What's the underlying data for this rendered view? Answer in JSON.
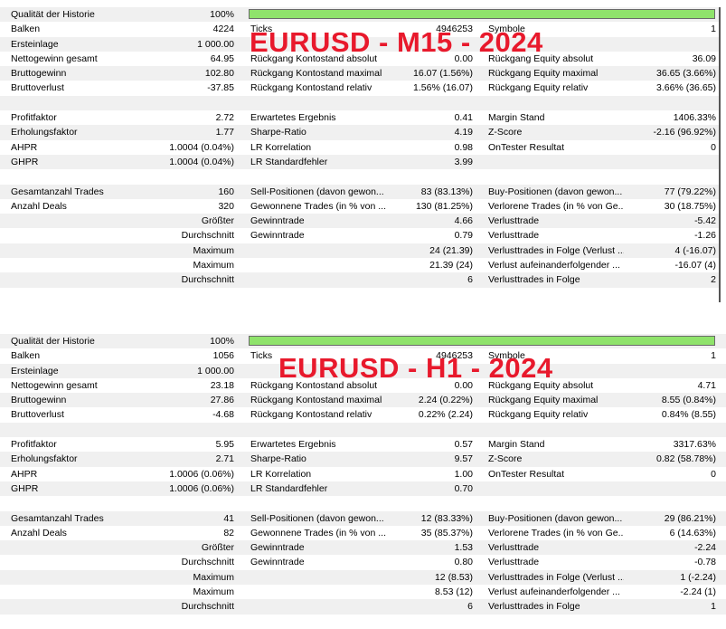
{
  "reports": [
    {
      "overlay": "EURUSD - M15 - 2024",
      "quality_label": "Qualität der Historie",
      "quality_value": "100%",
      "quality_fraction": 1.0,
      "bar_color": "#8fe36b",
      "rows1": [
        [
          "Balken",
          "4224",
          "Ticks",
          "4946253",
          "Symbole",
          "1"
        ],
        [
          "Ersteinlage",
          "1 000.00",
          "",
          "",
          "",
          ""
        ],
        [
          "Nettogewinn gesamt",
          "64.95",
          "Rückgang Kontostand absolut",
          "0.00",
          "Rückgang Equity absolut",
          "36.09"
        ],
        [
          "Bruttogewinn",
          "102.80",
          "Rückgang Kontostand maximal",
          "16.07 (1.56%)",
          "Rückgang Equity maximal",
          "36.65 (3.66%)"
        ],
        [
          "Bruttoverlust",
          "-37.85",
          "Rückgang Kontostand relativ",
          "1.56% (16.07)",
          "Rückgang Equity relativ",
          "3.66% (36.65)"
        ]
      ],
      "rows2": [
        [
          "Profitfaktor",
          "2.72",
          "Erwartetes Ergebnis",
          "0.41",
          "Margin Stand",
          "1406.33%"
        ],
        [
          "Erholungsfaktor",
          "1.77",
          "Sharpe-Ratio",
          "4.19",
          "Z-Score",
          "-2.16 (96.92%)"
        ],
        [
          "AHPR",
          "1.0004 (0.04%)",
          "LR Korrelation",
          "0.98",
          "OnTester Resultat",
          "0"
        ],
        [
          "GHPR",
          "1.0004 (0.04%)",
          "LR Standardfehler",
          "3.99",
          "",
          ""
        ]
      ],
      "rows3": [
        [
          "Gesamtanzahl Trades",
          "160",
          "Sell-Positionen (davon gewon...",
          "83 (83.13%)",
          "Buy-Positionen (davon gewon...",
          "77 (79.22%)"
        ],
        [
          "Anzahl Deals",
          "320",
          "Gewonnene Trades (in % von ...",
          "130 (81.25%)",
          "Verlorene Trades (in % von Ge...",
          "30 (18.75%)"
        ],
        [
          "",
          "Größter",
          "Gewinntrade",
          "4.66",
          "Verlusttrade",
          "-5.42"
        ],
        [
          "",
          "Durchschnitt",
          "Gewinntrade",
          "0.79",
          "Verlusttrade",
          "-1.26"
        ],
        [
          "",
          "Maximum",
          "",
          "24 (21.39)",
          "Verlusttrades in Folge (Verlust ...",
          "4 (-16.07)"
        ],
        [
          "",
          "Maximum",
          "",
          "21.39 (24)",
          "Verlust aufeinanderfolgender ...",
          "-16.07 (4)"
        ],
        [
          "",
          "Durchschnitt",
          "",
          "6",
          "Verlusttrades in Folge",
          "2"
        ]
      ]
    },
    {
      "overlay": "EURUSD - H1 - 2024",
      "quality_label": "Qualität der Historie",
      "quality_value": "100%",
      "quality_fraction": 1.0,
      "bar_color": "#8fe36b",
      "rows1": [
        [
          "Balken",
          "1056",
          "Ticks",
          "4946253",
          "Symbole",
          "1"
        ],
        [
          "Ersteinlage",
          "1 000.00",
          "",
          "",
          "",
          ""
        ],
        [
          "Nettogewinn gesamt",
          "23.18",
          "Rückgang Kontostand absolut",
          "0.00",
          "Rückgang Equity absolut",
          "4.71"
        ],
        [
          "Bruttogewinn",
          "27.86",
          "Rückgang Kontostand maximal",
          "2.24 (0.22%)",
          "Rückgang Equity maximal",
          "8.55 (0.84%)"
        ],
        [
          "Bruttoverlust",
          "-4.68",
          "Rückgang Kontostand relativ",
          "0.22% (2.24)",
          "Rückgang Equity relativ",
          "0.84% (8.55)"
        ]
      ],
      "rows2": [
        [
          "Profitfaktor",
          "5.95",
          "Erwartetes Ergebnis",
          "0.57",
          "Margin Stand",
          "3317.63%"
        ],
        [
          "Erholungsfaktor",
          "2.71",
          "Sharpe-Ratio",
          "9.57",
          "Z-Score",
          "0.82 (58.78%)"
        ],
        [
          "AHPR",
          "1.0006 (0.06%)",
          "LR Korrelation",
          "1.00",
          "OnTester Resultat",
          "0"
        ],
        [
          "GHPR",
          "1.0006 (0.06%)",
          "LR Standardfehler",
          "0.70",
          "",
          ""
        ]
      ],
      "rows3": [
        [
          "Gesamtanzahl Trades",
          "41",
          "Sell-Positionen (davon gewon...",
          "12 (83.33%)",
          "Buy-Positionen (davon gewon...",
          "29 (86.21%)"
        ],
        [
          "Anzahl Deals",
          "82",
          "Gewonnene Trades (in % von ...",
          "35 (85.37%)",
          "Verlorene Trades (in % von Ge...",
          "6 (14.63%)"
        ],
        [
          "",
          "Größter",
          "Gewinntrade",
          "1.53",
          "Verlusttrade",
          "-2.24"
        ],
        [
          "",
          "Durchschnitt",
          "Gewinntrade",
          "0.80",
          "Verlusttrade",
          "-0.78"
        ],
        [
          "",
          "Maximum",
          "",
          "12 (8.53)",
          "Verlusttrades in Folge (Verlust ...",
          "1 (-2.24)"
        ],
        [
          "",
          "Maximum",
          "",
          "8.53 (12)",
          "Verlust aufeinanderfolgender ...",
          "-2.24 (1)"
        ],
        [
          "",
          "Durchschnitt",
          "",
          "6",
          "Verlusttrades in Folge",
          "1"
        ]
      ]
    }
  ]
}
